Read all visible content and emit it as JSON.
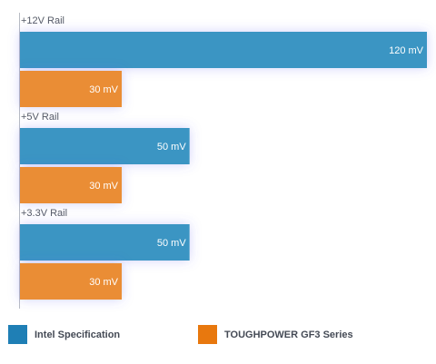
{
  "chart_data": {
    "type": "bar",
    "orientation": "horizontal",
    "categories": [
      "+12V Rail",
      "+5V Rail",
      "+3.3V Rail"
    ],
    "series": [
      {
        "name": "Intel Specification",
        "values": [
          120,
          50,
          50
        ],
        "labels": [
          "120 mV",
          "50 mV",
          "50 mV"
        ],
        "color": "#3a95c3"
      },
      {
        "name": "TOUGHPOWER GF3 Series",
        "values": [
          30,
          30,
          30
        ],
        "labels": [
          "30 mV",
          "30 mV",
          "30 mV"
        ],
        "color": "#ea8d36"
      }
    ],
    "xlim": [
      0,
      120
    ],
    "legend_position": "bottom",
    "grid": false
  },
  "legend": {
    "items": [
      {
        "label": "Intel Specification",
        "color": "#1f7fb5"
      },
      {
        "label": "TOUGHPOWER GF3 Series",
        "color": "#e8780e"
      }
    ]
  }
}
